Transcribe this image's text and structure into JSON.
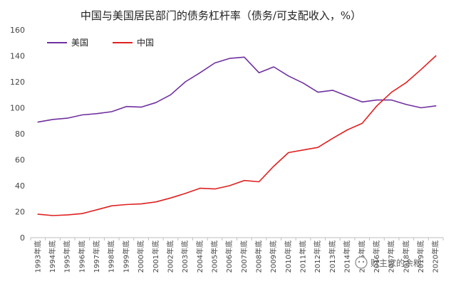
{
  "chart_data": {
    "type": "line",
    "title": "中国与美国居民部门的债务杠杆率（债务/可支配收入，%）",
    "xlabel": "",
    "ylabel": "",
    "ylim": [
      0,
      160
    ],
    "yticks": [
      0,
      20,
      40,
      60,
      80,
      100,
      120,
      140,
      160
    ],
    "grid": false,
    "legend_position": "top-left",
    "categories": [
      "1993年底",
      "1994年底",
      "1995年底",
      "1996年底",
      "1997年底",
      "1998年底",
      "1999年底",
      "2000年底",
      "2001年底",
      "2002年底",
      "2003年底",
      "2004年底",
      "2005年底",
      "2006年底",
      "2007年底",
      "2008年底",
      "2009年底",
      "2010年底",
      "2011年底",
      "2012年底",
      "2013年底",
      "2014年底",
      "2015年底",
      "2016年底",
      "2017年底",
      "2018年底",
      "2019年底",
      "2020年底"
    ],
    "series": [
      {
        "name": "美国",
        "color": "#7030a0",
        "values": [
          89,
          91,
          92,
          94.5,
          95.5,
          97,
          101,
          100.5,
          104,
          110,
          120,
          127,
          134.5,
          138,
          139,
          127,
          131.5,
          124.5,
          119,
          112,
          113.5,
          109,
          104.5,
          106,
          106,
          102.5,
          100,
          101.5
        ]
      },
      {
        "name": "中国",
        "color": "#e02020",
        "values": [
          18,
          17,
          17.5,
          18.5,
          21.5,
          24.5,
          25.5,
          26,
          27.5,
          30.5,
          34,
          38,
          37.5,
          40,
          44,
          43,
          55,
          65.5,
          67.5,
          69.5,
          76.5,
          83,
          88,
          101.5,
          112,
          119.5,
          129.5,
          140
        ]
      }
    ]
  },
  "watermark": {
    "text": "财主家的余粮",
    "icon": "wechat-icon"
  }
}
